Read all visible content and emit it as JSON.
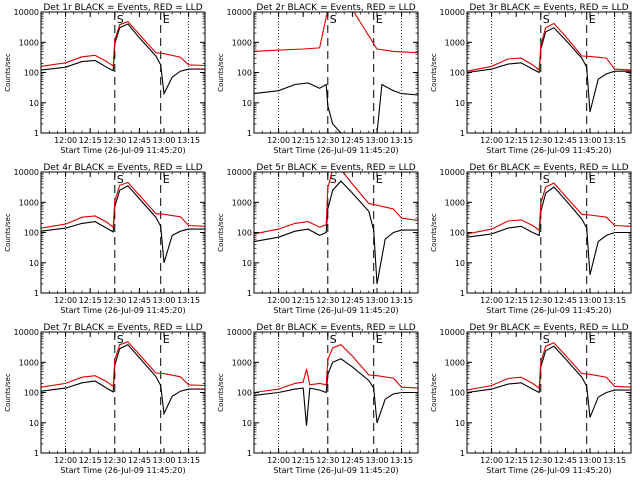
{
  "colors": {
    "events": "#000000",
    "lld": "#dd0000",
    "background": "#ffffff"
  },
  "common": {
    "xlabel": "Start Time (26-Jul-09 11:45:20)",
    "ylabel": "Counts/sec",
    "x_ticks": [
      "12:00",
      "12:15",
      "12:30",
      "12:45",
      "13:00",
      "13:15"
    ],
    "y_ticks": [
      "1",
      "10",
      "100",
      "1000",
      "10000"
    ],
    "markers": {
      "start": "S",
      "end": "E"
    }
  },
  "chart_data": [
    {
      "type": "line",
      "title": "Det 1r BLACK = Events, RED = LLD",
      "xlabel": "Start Time (26-Jul-09 11:45:20)",
      "ylabel": "Counts/sec",
      "xlim": [
        "11:45",
        "13:25"
      ],
      "ylim": [
        1,
        10000
      ],
      "yscale": "log",
      "legend": "in title",
      "series": [
        {
          "name": "Events",
          "x": [
            "11:45",
            "12:00",
            "12:10",
            "12:18",
            "12:25",
            "12:29",
            "12:30",
            "12:33",
            "12:38",
            "12:45",
            "12:55",
            "12:58",
            "13:00",
            "13:05",
            "13:10",
            "13:15",
            "13:25"
          ],
          "values": [
            120,
            150,
            230,
            250,
            150,
            115,
            900,
            3000,
            4000,
            1400,
            350,
            180,
            20,
            70,
            110,
            130,
            130
          ]
        },
        {
          "name": "LLD",
          "x": [
            "11:45",
            "12:00",
            "12:10",
            "12:18",
            "12:25",
            "12:29",
            "12:30",
            "12:33",
            "12:38",
            "12:45",
            "12:55",
            "13:00",
            "13:10",
            "13:15",
            "13:25"
          ],
          "values": [
            160,
            210,
            330,
            370,
            230,
            165,
            1200,
            3800,
            4800,
            1800,
            450,
            420,
            320,
            180,
            170
          ]
        }
      ]
    },
    {
      "type": "line",
      "title": "Det 2r BLACK = Events, RED = LLD",
      "xlabel": "Start Time (26-Jul-09 11:45:20)",
      "ylabel": "Counts/sec",
      "xlim": [
        "11:45",
        "13:25"
      ],
      "ylim": [
        1,
        10000
      ],
      "yscale": "log",
      "legend": "in title",
      "series": [
        {
          "name": "Events",
          "x": [
            "11:45",
            "12:00",
            "12:10",
            "12:18",
            "12:25",
            "12:29",
            "12:30",
            "12:33",
            "12:38",
            "12:45",
            "12:55",
            "12:58",
            "13:00",
            "13:03",
            "13:10",
            "13:15",
            "13:25"
          ],
          "values": [
            20,
            25,
            40,
            45,
            30,
            40,
            8,
            2,
            1,
            1,
            1,
            1,
            1,
            40,
            25,
            20,
            18
          ]
        },
        {
          "name": "LLD",
          "x": [
            "11:45",
            "12:00",
            "12:15",
            "12:25",
            "12:30",
            "12:33",
            "12:45",
            "13:00",
            "13:10",
            "13:25"
          ],
          "values": [
            500,
            550,
            600,
            650,
            12000,
            12000,
            12000,
            600,
            500,
            450
          ]
        }
      ]
    },
    {
      "type": "line",
      "title": "Det 3r BLACK = Events, RED = LLD",
      "xlabel": "Start Time (26-Jul-09 11:45:20)",
      "ylabel": "Counts/sec",
      "xlim": [
        "11:45",
        "13:25"
      ],
      "ylim": [
        1,
        10000
      ],
      "yscale": "log",
      "legend": "in title",
      "series": [
        {
          "name": "Events",
          "x": [
            "11:45",
            "12:00",
            "12:10",
            "12:18",
            "12:25",
            "12:29",
            "12:30",
            "12:33",
            "12:38",
            "12:45",
            "12:55",
            "12:58",
            "13:00",
            "13:05",
            "13:10",
            "13:15",
            "13:25"
          ],
          "values": [
            100,
            130,
            190,
            210,
            130,
            100,
            600,
            2200,
            3000,
            1200,
            300,
            150,
            5,
            60,
            90,
            110,
            110
          ]
        },
        {
          "name": "LLD",
          "x": [
            "11:45",
            "12:00",
            "12:10",
            "12:18",
            "12:25",
            "12:29",
            "12:30",
            "12:33",
            "12:38",
            "12:45",
            "12:55",
            "13:00",
            "13:10",
            "13:15",
            "13:25"
          ],
          "values": [
            110,
            160,
            280,
            300,
            180,
            120,
            800,
            3000,
            4200,
            1600,
            350,
            340,
            300,
            130,
            120
          ]
        }
      ]
    },
    {
      "type": "line",
      "title": "Det 4r BLACK = Events, RED = LLD",
      "xlabel": "Start Time (26-Jul-09 11:45:20)",
      "ylabel": "Counts/sec",
      "xlim": [
        "11:45",
        "13:25"
      ],
      "ylim": [
        1,
        10000
      ],
      "yscale": "log",
      "legend": "in title",
      "series": [
        {
          "name": "Events",
          "x": [
            "11:45",
            "12:00",
            "12:10",
            "12:18",
            "12:25",
            "12:29",
            "12:30",
            "12:33",
            "12:38",
            "12:45",
            "12:55",
            "12:58",
            "13:00",
            "13:05",
            "13:10",
            "13:15",
            "13:25"
          ],
          "values": [
            110,
            140,
            200,
            230,
            140,
            105,
            700,
            2500,
            3500,
            1300,
            320,
            160,
            10,
            80,
            110,
            130,
            130
          ]
        },
        {
          "name": "LLD",
          "x": [
            "11:45",
            "12:00",
            "12:10",
            "12:18",
            "12:25",
            "12:29",
            "12:30",
            "12:33",
            "12:38",
            "12:45",
            "12:55",
            "13:00",
            "13:10",
            "13:15",
            "13:25"
          ],
          "values": [
            140,
            190,
            320,
            350,
            220,
            150,
            1100,
            3600,
            4500,
            1700,
            420,
            400,
            330,
            170,
            160
          ]
        }
      ]
    },
    {
      "type": "line",
      "title": "Det 5r BLACK = Events, RED = LLD",
      "xlabel": "Start Time (26-Jul-09 11:45:20)",
      "ylabel": "Counts/sec",
      "xlim": [
        "11:45",
        "13:25"
      ],
      "ylim": [
        1,
        10000
      ],
      "yscale": "log",
      "legend": "in title",
      "series": [
        {
          "name": "Events",
          "x": [
            "11:45",
            "12:00",
            "12:10",
            "12:18",
            "12:25",
            "12:29",
            "12:30",
            "12:33",
            "12:38",
            "12:45",
            "12:55",
            "12:58",
            "13:00",
            "13:05",
            "13:10",
            "13:15",
            "13:25"
          ],
          "values": [
            50,
            70,
            110,
            130,
            80,
            100,
            600,
            2500,
            5000,
            2000,
            500,
            120,
            2,
            60,
            100,
            120,
            120
          ]
        },
        {
          "name": "LLD",
          "x": [
            "11:45",
            "12:00",
            "12:10",
            "12:18",
            "12:25",
            "12:29",
            "12:30",
            "12:33",
            "12:38",
            "12:45",
            "12:55",
            "13:00",
            "13:10",
            "13:15",
            "13:25"
          ],
          "values": [
            90,
            130,
            200,
            230,
            150,
            180,
            3000,
            12000,
            12000,
            4000,
            900,
            800,
            600,
            300,
            250
          ]
        }
      ]
    },
    {
      "type": "line",
      "title": "Det 6r BLACK = Events, RED = LLD",
      "xlabel": "Start Time (26-Jul-09 11:45:20)",
      "ylabel": "Counts/sec",
      "xlim": [
        "11:45",
        "13:25"
      ],
      "ylim": [
        1,
        10000
      ],
      "yscale": "log",
      "legend": "in title",
      "series": [
        {
          "name": "Events",
          "x": [
            "11:45",
            "12:00",
            "12:10",
            "12:18",
            "12:25",
            "12:29",
            "12:30",
            "12:33",
            "12:38",
            "12:45",
            "12:55",
            "12:58",
            "13:00",
            "13:05",
            "13:10",
            "13:15",
            "13:25"
          ],
          "values": [
            70,
            90,
            140,
            160,
            100,
            80,
            500,
            2000,
            3200,
            1200,
            280,
            140,
            4,
            50,
            80,
            100,
            100
          ]
        },
        {
          "name": "LLD",
          "x": [
            "11:45",
            "12:00",
            "12:10",
            "12:18",
            "12:25",
            "12:29",
            "12:30",
            "12:33",
            "12:38",
            "12:45",
            "12:55",
            "13:00",
            "13:10",
            "13:15",
            "13:25"
          ],
          "values": [
            90,
            130,
            240,
            260,
            170,
            120,
            900,
            3200,
            4300,
            1600,
            400,
            380,
            320,
            170,
            160
          ]
        }
      ]
    },
    {
      "type": "line",
      "title": "Det 7r BLACK = Events, RED = LLD",
      "xlabel": "Start Time (26-Jul-09 11:45:20)",
      "ylabel": "Counts/sec",
      "xlim": [
        "11:45",
        "13:25"
      ],
      "ylim": [
        1,
        10000
      ],
      "yscale": "log",
      "legend": "in title",
      "series": [
        {
          "name": "Events",
          "x": [
            "11:45",
            "12:00",
            "12:10",
            "12:18",
            "12:25",
            "12:29",
            "12:30",
            "12:33",
            "12:38",
            "12:45",
            "12:55",
            "12:58",
            "13:00",
            "13:05",
            "13:10",
            "13:15",
            "13:25"
          ],
          "values": [
            110,
            140,
            210,
            240,
            140,
            105,
            800,
            2800,
            3800,
            1400,
            340,
            170,
            20,
            75,
            110,
            130,
            130
          ]
        },
        {
          "name": "LLD",
          "x": [
            "11:45",
            "12:00",
            "12:10",
            "12:18",
            "12:25",
            "12:29",
            "12:30",
            "12:33",
            "12:38",
            "12:45",
            "12:55",
            "13:00",
            "13:10",
            "13:15",
            "13:25"
          ],
          "values": [
            150,
            200,
            320,
            360,
            230,
            160,
            1200,
            3800,
            4700,
            1800,
            440,
            420,
            330,
            180,
            170
          ]
        }
      ]
    },
    {
      "type": "line",
      "title": "Det 8r BLACK = Events, RED = LLD",
      "xlabel": "Start Time (26-Jul-09 11:45:20)",
      "ylabel": "Counts/sec",
      "xlim": [
        "11:45",
        "13:25"
      ],
      "ylim": [
        1,
        10000
      ],
      "yscale": "log",
      "legend": "in title",
      "series": [
        {
          "name": "Events",
          "x": [
            "11:45",
            "12:00",
            "12:10",
            "12:15",
            "12:17",
            "12:19",
            "12:25",
            "12:29",
            "12:30",
            "12:33",
            "12:38",
            "12:45",
            "12:55",
            "12:58",
            "13:00",
            "13:05",
            "13:10",
            "13:15",
            "13:25"
          ],
          "values": [
            80,
            100,
            130,
            140,
            8,
            140,
            120,
            100,
            400,
            1000,
            1300,
            700,
            250,
            140,
            10,
            60,
            90,
            100,
            100
          ]
        },
        {
          "name": "LLD",
          "x": [
            "11:45",
            "12:00",
            "12:10",
            "12:15",
            "12:17",
            "12:19",
            "12:25",
            "12:29",
            "12:30",
            "12:33",
            "12:38",
            "12:45",
            "12:55",
            "13:00",
            "13:10",
            "13:15",
            "13:25"
          ],
          "values": [
            100,
            130,
            200,
            220,
            600,
            180,
            200,
            180,
            1200,
            3000,
            3800,
            1600,
            380,
            360,
            300,
            150,
            140
          ]
        }
      ]
    },
    {
      "type": "line",
      "title": "Det 9r BLACK = Events, RED = LLD",
      "xlabel": "Start Time (26-Jul-09 11:45:20)",
      "ylabel": "Counts/sec",
      "xlim": [
        "11:45",
        "13:25"
      ],
      "ylim": [
        1,
        10000
      ],
      "yscale": "log",
      "legend": "in title",
      "series": [
        {
          "name": "Events",
          "x": [
            "11:45",
            "12:00",
            "12:10",
            "12:18",
            "12:25",
            "12:29",
            "12:30",
            "12:33",
            "12:38",
            "12:45",
            "12:55",
            "12:58",
            "13:00",
            "13:05",
            "13:10",
            "13:15",
            "13:25"
          ],
          "values": [
            100,
            130,
            190,
            210,
            130,
            100,
            700,
            2400,
            3400,
            1300,
            320,
            160,
            15,
            70,
            100,
            120,
            120
          ]
        },
        {
          "name": "LLD",
          "x": [
            "11:45",
            "12:00",
            "12:10",
            "12:18",
            "12:25",
            "12:29",
            "12:30",
            "12:33",
            "12:38",
            "12:45",
            "12:55",
            "13:00",
            "13:10",
            "13:15",
            "13:25"
          ],
          "values": [
            120,
            170,
            290,
            320,
            200,
            140,
            1000,
            3400,
            4400,
            1700,
            420,
            400,
            320,
            160,
            150
          ]
        }
      ]
    }
  ]
}
